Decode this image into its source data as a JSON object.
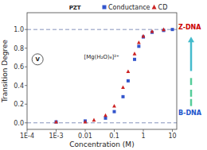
{
  "chart_data": {
    "type": "scatter",
    "x_label": "Concentration (M)",
    "y_label": "Transition Degree",
    "log": "x",
    "grid": false,
    "legend": "top",
    "xlim": [
      0.0001,
      14.125375446227544
    ],
    "ylim": [
      -0.07,
      1.18
    ],
    "xticks": [
      {
        "value": 0.0001,
        "label": "1E-4"
      },
      {
        "value": 0.001,
        "label": "1E-3"
      },
      0.01,
      0.1,
      1,
      10
    ],
    "yticks": [
      {
        "value": 0.0,
        "label": "0.0"
      },
      0.2,
      0.4,
      0.6,
      0.8,
      {
        "value": 1.0,
        "label": "1.0"
      }
    ],
    "hlines": [
      0.0,
      1.0
    ],
    "series": [
      {
        "name": "Conductance",
        "color": "#3355cc",
        "marker": "square",
        "x": [
          0.001,
          0.01,
          0.05,
          0.1,
          0.2,
          0.3,
          0.5,
          0.7,
          1.0,
          2.0,
          5.0,
          10.0
        ],
        "values": [
          0.01,
          0.02,
          0.05,
          0.12,
          0.28,
          0.45,
          0.68,
          0.82,
          0.92,
          0.97,
          0.99,
          1.0
        ]
      },
      {
        "name": "CD",
        "color": "#cc2222",
        "marker": "triangle",
        "x": [
          0.001,
          0.01,
          0.02,
          0.05,
          0.1,
          0.2,
          0.3,
          0.5,
          0.7,
          1.0,
          2.0,
          5.0
        ],
        "values": [
          0.01,
          0.01,
          0.03,
          0.08,
          0.18,
          0.38,
          0.55,
          0.74,
          0.86,
          0.93,
          0.98,
          1.0
        ]
      }
    ],
    "annotations": [
      {
        "text": "Z-DNA",
        "color": "#cc0000"
      },
      {
        "text": "B-DNA",
        "color": "#2255cc"
      },
      {
        "text": "PZT"
      },
      {
        "text": "V"
      },
      {
        "text": "[Mg(H₂O)₆]²⁺"
      }
    ]
  }
}
